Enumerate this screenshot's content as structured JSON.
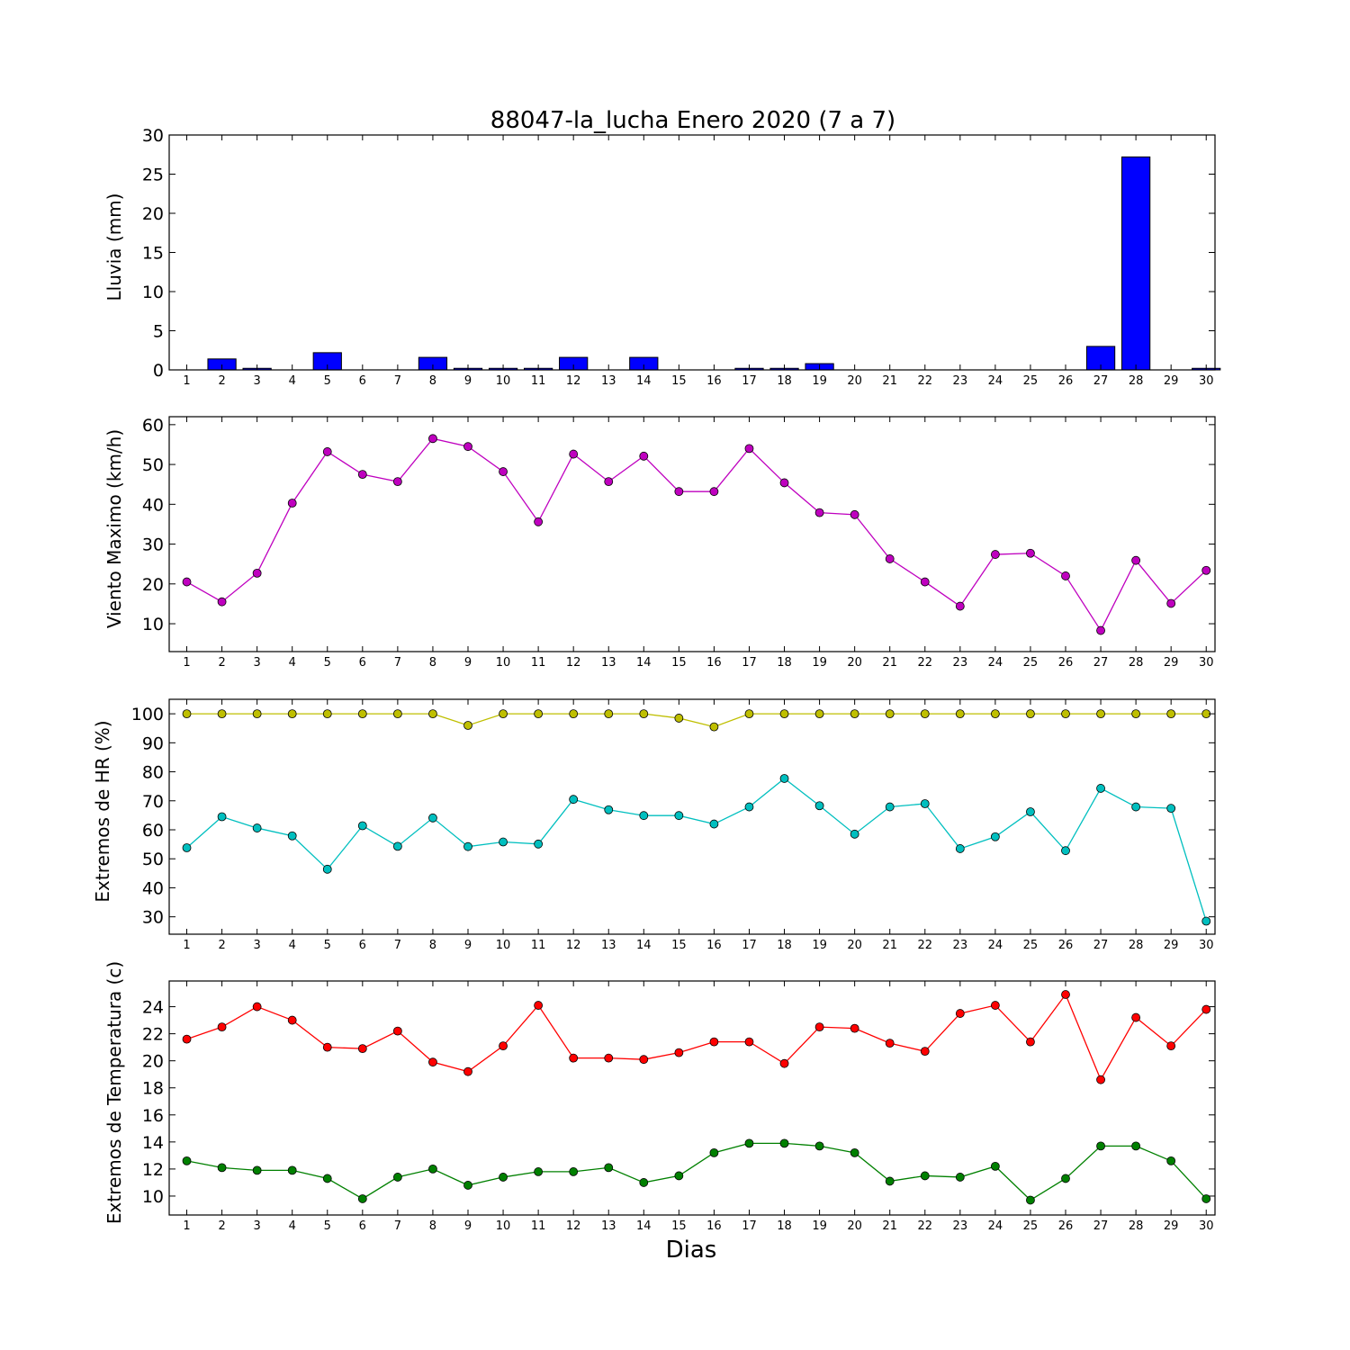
{
  "figure": {
    "title": "88047-la_lucha Enero 2020  (7 a 7)",
    "xlabel": "Dias"
  },
  "chart_data": [
    {
      "type": "bar",
      "title": "88047-la_lucha Enero 2020  (7 a 7)",
      "ylabel": "Lluvia (mm)",
      "xlabel": "",
      "ylim": [
        0,
        30
      ],
      "yticks": [
        0,
        5,
        10,
        15,
        20,
        25,
        30
      ],
      "categories": [
        "1",
        "2",
        "3",
        "4",
        "5",
        "6",
        "7",
        "8",
        "9",
        "10",
        "11",
        "12",
        "13",
        "14",
        "15",
        "16",
        "17",
        "18",
        "19",
        "20",
        "21",
        "22",
        "23",
        "24",
        "25",
        "26",
        "27",
        "28",
        "29",
        "30"
      ],
      "series": [
        {
          "color": "#0000ff",
          "values": [
            0,
            1.4,
            0.2,
            0,
            2.2,
            0,
            0,
            1.6,
            0.2,
            0.2,
            0.2,
            1.6,
            0,
            1.6,
            0,
            0,
            0.2,
            0.2,
            0.8,
            0,
            0,
            0,
            0,
            0,
            0,
            0,
            3.0,
            27.2,
            0,
            0.2
          ]
        }
      ],
      "grid": false
    },
    {
      "type": "line",
      "ylabel": "Viento Maximo (km/h)",
      "xlabel": "",
      "ylim": [
        3,
        62
      ],
      "yticks": [
        10,
        20,
        30,
        40,
        50,
        60
      ],
      "categories": [
        "1",
        "2",
        "3",
        "4",
        "5",
        "6",
        "7",
        "8",
        "9",
        "10",
        "11",
        "12",
        "13",
        "14",
        "15",
        "16",
        "17",
        "18",
        "19",
        "20",
        "21",
        "22",
        "23",
        "24",
        "25",
        "26",
        "27",
        "28",
        "29",
        "30"
      ],
      "series": [
        {
          "color": "#bf00bf",
          "values": [
            20.5,
            15.5,
            22.7,
            40.3,
            53.2,
            47.5,
            45.7,
            56.5,
            54.5,
            48.2,
            35.6,
            52.6,
            45.7,
            52.1,
            43.2,
            43.2,
            54.0,
            45.4,
            37.9,
            37.4,
            26.3,
            20.5,
            14.4,
            27.4,
            27.7,
            22.0,
            8.3,
            25.9,
            15.1,
            23.4
          ]
        }
      ],
      "grid": false
    },
    {
      "type": "line",
      "ylabel": "Extremos de HR (%)",
      "xlabel": "",
      "ylim": [
        24,
        105
      ],
      "yticks": [
        30,
        40,
        50,
        60,
        70,
        80,
        90,
        100
      ],
      "categories": [
        "1",
        "2",
        "3",
        "4",
        "5",
        "6",
        "7",
        "8",
        "9",
        "10",
        "11",
        "12",
        "13",
        "14",
        "15",
        "16",
        "17",
        "18",
        "19",
        "20",
        "21",
        "22",
        "23",
        "24",
        "25",
        "26",
        "27",
        "28",
        "29",
        "30"
      ],
      "series": [
        {
          "color": "#bfbf00",
          "values": [
            100,
            100,
            100,
            100,
            100,
            100,
            100,
            100,
            96,
            100,
            100,
            100,
            100,
            100,
            98.5,
            95.5,
            100,
            100,
            100,
            100,
            100,
            100,
            100,
            100,
            100,
            100,
            100,
            100,
            100,
            100
          ]
        },
        {
          "color": "#00bfbf",
          "values": [
            53.8,
            64.5,
            60.6,
            57.9,
            46.4,
            61.4,
            54.3,
            64.1,
            54.2,
            55.8,
            55.1,
            70.5,
            66.9,
            64.9,
            64.9,
            62.0,
            67.9,
            77.7,
            68.3,
            58.5,
            67.9,
            69.0,
            53.5,
            57.6,
            66.2,
            52.8,
            74.3,
            67.9,
            67.4,
            28.5
          ]
        }
      ],
      "grid": false
    },
    {
      "type": "line",
      "ylabel": "Extremos de Temperatura (c)",
      "xlabel": "Dias",
      "ylim": [
        8.6,
        25.9
      ],
      "yticks": [
        10,
        12,
        14,
        16,
        18,
        20,
        22,
        24
      ],
      "categories": [
        "1",
        "2",
        "3",
        "4",
        "5",
        "6",
        "7",
        "8",
        "9",
        "10",
        "11",
        "12",
        "13",
        "14",
        "15",
        "16",
        "17",
        "18",
        "19",
        "20",
        "21",
        "22",
        "23",
        "24",
        "25",
        "26",
        "27",
        "28",
        "29",
        "30"
      ],
      "series": [
        {
          "color": "#ff0000",
          "values": [
            21.6,
            22.5,
            24.0,
            23.0,
            21.0,
            20.9,
            22.2,
            19.9,
            19.2,
            21.1,
            24.1,
            20.2,
            20.2,
            20.1,
            20.6,
            21.4,
            21.4,
            19.8,
            22.5,
            22.4,
            21.3,
            20.7,
            23.5,
            24.1,
            21.4,
            24.9,
            18.6,
            23.2,
            21.1,
            23.8
          ]
        },
        {
          "color": "#008000",
          "values": [
            12.6,
            12.1,
            11.9,
            11.9,
            11.3,
            9.8,
            11.4,
            12.0,
            10.8,
            11.4,
            11.8,
            11.8,
            12.1,
            11.0,
            11.5,
            13.2,
            13.9,
            13.9,
            13.7,
            13.2,
            11.1,
            11.5,
            11.4,
            12.2,
            9.7,
            11.3,
            13.7,
            13.7,
            12.6,
            9.8
          ]
        }
      ],
      "grid": false
    }
  ]
}
